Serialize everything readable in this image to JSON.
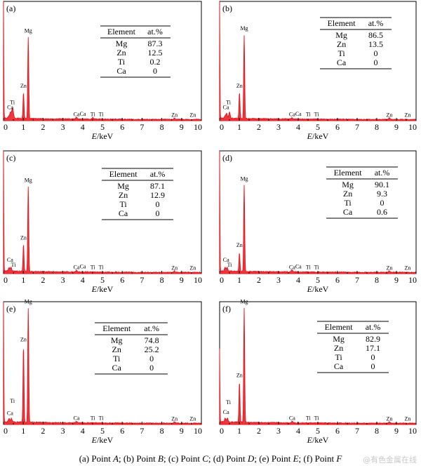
{
  "caption": "(a) Point A; (b) Point B; (c) Point C; (d) Point D; (e) Point E; (f) Point F",
  "caption_parts": [
    {
      "tag": "(a) Point ",
      "point": "A",
      "sep": "; "
    },
    {
      "tag": "(b) Point ",
      "point": "B",
      "sep": "; "
    },
    {
      "tag": "(c) Point ",
      "point": "C",
      "sep": "; "
    },
    {
      "tag": "(d) Point ",
      "point": "D",
      "sep": "; "
    },
    {
      "tag": "(e) Point ",
      "point": "E",
      "sep": "; "
    },
    {
      "tag": "(f) Point ",
      "point": "F",
      "sep": ""
    }
  ],
  "watermark": "@有色金属在线",
  "colors": {
    "spectrum": "#e8141c",
    "axis": "#000000"
  },
  "chart_data": [
    {
      "type": "area",
      "panel_label": "(a)",
      "xlabel_italic": "E",
      "xlabel_unit": "/keV",
      "xlim": [
        0,
        10
      ],
      "x_ticks": [
        "0",
        "1",
        "2",
        "3",
        "4",
        "5",
        "6",
        "7",
        "8",
        "9",
        "10"
      ],
      "table": {
        "headers": [
          "Element",
          "at.%"
        ],
        "rows": [
          [
            "Mg",
            "87.3"
          ],
          [
            "Zn",
            "12.5"
          ],
          [
            "Ti",
            "0.2"
          ],
          [
            "Ca",
            "0"
          ]
        ]
      },
      "peak_labels": [
        {
          "text": "Ca",
          "x": 0.34,
          "rel": 0.08
        },
        {
          "text": "Ti",
          "x": 0.45,
          "rel": 0.12
        },
        {
          "text": "Zn",
          "x": 1.01,
          "rel": 0.26
        },
        {
          "text": "Mg",
          "x": 1.25,
          "rel": 0.72
        },
        {
          "text": "Ca",
          "x": 3.69,
          "rel": 0.02
        },
        {
          "text": "Ca",
          "x": 4.01,
          "rel": 0.025
        },
        {
          "text": "Ti",
          "x": 4.51,
          "rel": 0.02
        },
        {
          "text": "Ti",
          "x": 4.93,
          "rel": 0.02
        },
        {
          "text": "Zn",
          "x": 8.64,
          "rel": 0.015
        },
        {
          "text": "Zn",
          "x": 9.57,
          "rel": 0.015
        }
      ],
      "peaks": [
        {
          "x": 0.0,
          "h": 1.0
        },
        {
          "x": 0.28,
          "h": 0.02
        },
        {
          "x": 0.36,
          "h": 0.05
        },
        {
          "x": 0.45,
          "h": 0.08
        },
        {
          "x": 0.5,
          "h": 0.02
        },
        {
          "x": 1.01,
          "h": 0.22
        },
        {
          "x": 1.25,
          "h": 0.68
        },
        {
          "x": 3.69,
          "h": 0.015
        },
        {
          "x": 4.51,
          "h": 0.015
        },
        {
          "x": 8.64,
          "h": 0.012
        }
      ]
    },
    {
      "type": "area",
      "panel_label": "(b)",
      "xlabel_italic": "E",
      "xlabel_unit": "/keV",
      "xlim": [
        0,
        10
      ],
      "x_ticks": [
        "0",
        "1",
        "2",
        "3",
        "4",
        "5",
        "6",
        "7",
        "8",
        "9",
        "10"
      ],
      "table": {
        "headers": [
          "Element",
          "at.%"
        ],
        "rows": [
          [
            "Mg",
            "86.5"
          ],
          [
            "Zn",
            "13.5"
          ],
          [
            "Ti",
            "0"
          ],
          [
            "Ca",
            "0"
          ]
        ]
      },
      "peak_labels": [
        {
          "text": "Ca",
          "x": 0.32,
          "rel": 0.08
        },
        {
          "text": "Ti",
          "x": 0.45,
          "rel": 0.12
        },
        {
          "text": "Zn",
          "x": 1.01,
          "rel": 0.26
        },
        {
          "text": "Mg",
          "x": 1.25,
          "rel": 0.74
        },
        {
          "text": "Ca",
          "x": 3.69,
          "rel": 0.02
        },
        {
          "text": "Ca",
          "x": 4.01,
          "rel": 0.025
        },
        {
          "text": "Ti",
          "x": 4.51,
          "rel": 0.02
        },
        {
          "text": "Ti",
          "x": 4.93,
          "rel": 0.02
        },
        {
          "text": "Zn",
          "x": 8.64,
          "rel": 0.015
        },
        {
          "text": "Zn",
          "x": 9.57,
          "rel": 0.015
        }
      ],
      "peaks": [
        {
          "x": 0.0,
          "h": 1.0
        },
        {
          "x": 0.28,
          "h": 0.02
        },
        {
          "x": 0.36,
          "h": 0.04
        },
        {
          "x": 0.5,
          "h": 0.05
        },
        {
          "x": 1.01,
          "h": 0.22
        },
        {
          "x": 1.25,
          "h": 0.7
        },
        {
          "x": 3.69,
          "h": 0.012
        },
        {
          "x": 8.64,
          "h": 0.012
        }
      ]
    },
    {
      "type": "area",
      "panel_label": "(c)",
      "xlabel_italic": "E",
      "xlabel_unit": "/keV",
      "xlim": [
        0,
        10
      ],
      "x_ticks": [
        "0",
        "1",
        "2",
        "3",
        "4",
        "5",
        "6",
        "7",
        "8",
        "9",
        "10"
      ],
      "table": {
        "headers": [
          "Element",
          "at.%"
        ],
        "rows": [
          [
            "Mg",
            "87.1"
          ],
          [
            "Zn",
            "12.9"
          ],
          [
            "Ti",
            "0"
          ],
          [
            "Ca",
            "0"
          ]
        ]
      },
      "peak_labels": [
        {
          "text": "Ca",
          "x": 0.33,
          "rel": 0.08
        },
        {
          "text": "Ti",
          "x": 0.5,
          "rel": 0.04
        },
        {
          "text": "Zn",
          "x": 1.01,
          "rel": 0.26
        },
        {
          "text": "Mg",
          "x": 1.25,
          "rel": 0.73
        },
        {
          "text": "Ca",
          "x": 3.69,
          "rel": 0.02
        },
        {
          "text": "Ca",
          "x": 4.01,
          "rel": 0.025
        },
        {
          "text": "Ti",
          "x": 4.51,
          "rel": 0.02
        },
        {
          "text": "Ti",
          "x": 4.93,
          "rel": 0.02
        },
        {
          "text": "Zn",
          "x": 8.64,
          "rel": 0.015
        },
        {
          "text": "Zn",
          "x": 9.57,
          "rel": 0.015
        }
      ],
      "peaks": [
        {
          "x": 0.0,
          "h": 1.0
        },
        {
          "x": 0.28,
          "h": 0.03
        },
        {
          "x": 0.38,
          "h": 0.03
        },
        {
          "x": 1.01,
          "h": 0.22
        },
        {
          "x": 1.25,
          "h": 0.69
        },
        {
          "x": 3.69,
          "h": 0.012
        },
        {
          "x": 8.64,
          "h": 0.012
        }
      ]
    },
    {
      "type": "area",
      "panel_label": "(d)",
      "xlabel_italic": "E",
      "xlabel_unit": "/keV",
      "xlim": [
        0,
        10
      ],
      "x_ticks": [
        "0",
        "1",
        "2",
        "3",
        "4",
        "5",
        "6",
        "7",
        "8",
        "9",
        "10"
      ],
      "table": {
        "headers": [
          "Element",
          "at.%"
        ],
        "rows": [
          [
            "Mg",
            "90.1"
          ],
          [
            "Zn",
            "9.3"
          ],
          [
            "Ti",
            "0"
          ],
          [
            "Ca",
            "0.6"
          ]
        ]
      },
      "peak_labels": [
        {
          "text": "Ca",
          "x": 0.33,
          "rel": 0.08
        },
        {
          "text": "Ti",
          "x": 0.5,
          "rel": 0.04
        },
        {
          "text": "Zn",
          "x": 1.01,
          "rel": 0.2
        },
        {
          "text": "Mg",
          "x": 1.25,
          "rel": 0.74
        },
        {
          "text": "Ca",
          "x": 3.69,
          "rel": 0.02
        },
        {
          "text": "Ca",
          "x": 4.01,
          "rel": 0.025
        },
        {
          "text": "Ti",
          "x": 4.51,
          "rel": 0.02
        },
        {
          "text": "Ti",
          "x": 4.93,
          "rel": 0.02
        },
        {
          "text": "Zn",
          "x": 8.64,
          "rel": 0.015
        },
        {
          "text": "Zn",
          "x": 9.57,
          "rel": 0.015
        }
      ],
      "peaks": [
        {
          "x": 0.0,
          "h": 1.0
        },
        {
          "x": 0.28,
          "h": 0.03
        },
        {
          "x": 0.38,
          "h": 0.03
        },
        {
          "x": 1.01,
          "h": 0.15
        },
        {
          "x": 1.25,
          "h": 0.7
        },
        {
          "x": 3.69,
          "h": 0.02
        },
        {
          "x": 8.64,
          "h": 0.012
        }
      ]
    },
    {
      "type": "area",
      "panel_label": "(e)",
      "xlabel_italic": "E",
      "xlabel_unit": "/keV",
      "xlim": [
        0,
        10
      ],
      "x_ticks": [
        "0",
        "1",
        "2",
        "3",
        "4",
        "5",
        "6",
        "7",
        "8",
        "9",
        "10"
      ],
      "table": {
        "headers": [
          "Element",
          "at.%"
        ],
        "rows": [
          [
            "Mg",
            "74.8"
          ],
          [
            "Zn",
            "25.2"
          ],
          [
            "Ti",
            "0"
          ],
          [
            "Ca",
            "0"
          ]
        ]
      },
      "peak_labels": [
        {
          "text": "Ca",
          "x": 0.33,
          "rel": 0.06
        },
        {
          "text": "Ti",
          "x": 0.45,
          "rel": 0.16
        },
        {
          "text": "Zn",
          "x": 1.01,
          "rel": 0.66
        },
        {
          "text": "Mg",
          "x": 1.25,
          "rel": 0.97
        },
        {
          "text": "Ca",
          "x": 3.69,
          "rel": 0.02
        },
        {
          "text": "Ti",
          "x": 4.51,
          "rel": 0.02
        },
        {
          "text": "Ti",
          "x": 4.93,
          "rel": 0.02
        },
        {
          "text": "Zn",
          "x": 8.64,
          "rel": 0.015
        },
        {
          "text": "Zn",
          "x": 9.57,
          "rel": 0.015
        }
      ],
      "peaks": [
        {
          "x": 0.0,
          "h": 0.98
        },
        {
          "x": 0.28,
          "h": 0.03
        },
        {
          "x": 0.4,
          "h": 0.03
        },
        {
          "x": 1.01,
          "h": 0.62
        },
        {
          "x": 1.25,
          "h": 0.93
        },
        {
          "x": 3.69,
          "h": 0.012
        },
        {
          "x": 8.64,
          "h": 0.014
        }
      ]
    },
    {
      "type": "area",
      "panel_label": "(f)",
      "xlabel_italic": "E",
      "xlabel_unit": "/keV",
      "xlim": [
        0,
        10
      ],
      "x_ticks": [
        "0",
        "1",
        "2",
        "3",
        "4",
        "5",
        "6",
        "7",
        "8",
        "9",
        "10"
      ],
      "table": {
        "headers": [
          "Element",
          "at.%"
        ],
        "rows": [
          [
            "Mg",
            "82.9"
          ],
          [
            "Zn",
            "17.1"
          ],
          [
            "Ti",
            "0"
          ],
          [
            "Ca",
            "0"
          ]
        ]
      },
      "peak_labels": [
        {
          "text": "Ca",
          "x": 0.33,
          "rel": 0.07
        },
        {
          "text": "Ti",
          "x": 0.45,
          "rel": 0.15
        },
        {
          "text": "Zn",
          "x": 1.01,
          "rel": 0.37
        },
        {
          "text": "Mg",
          "x": 1.25,
          "rel": 0.97
        },
        {
          "text": "Ca",
          "x": 3.69,
          "rel": 0.02
        },
        {
          "text": "Ti",
          "x": 4.51,
          "rel": 0.02
        },
        {
          "text": "Ti",
          "x": 4.93,
          "rel": 0.02
        },
        {
          "text": "Zn",
          "x": 8.64,
          "rel": 0.015
        },
        {
          "text": "Zn",
          "x": 9.57,
          "rel": 0.015
        }
      ],
      "peaks": [
        {
          "x": 0.0,
          "h": 0.6
        },
        {
          "x": 0.28,
          "h": 0.03
        },
        {
          "x": 0.4,
          "h": 0.03
        },
        {
          "x": 1.01,
          "h": 0.33
        },
        {
          "x": 1.25,
          "h": 0.93
        },
        {
          "x": 3.69,
          "h": 0.012
        },
        {
          "x": 8.64,
          "h": 0.012
        }
      ]
    }
  ]
}
